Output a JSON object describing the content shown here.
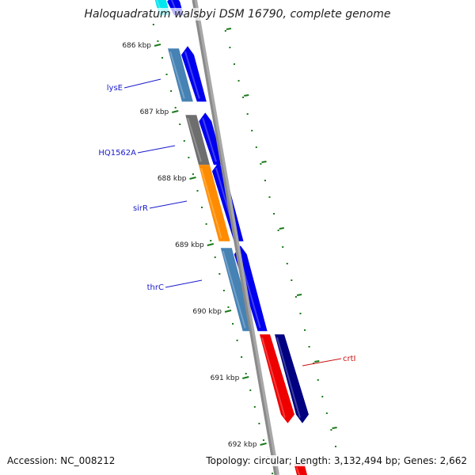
{
  "title": "Haloquadratum walsbyi DSM 16790, complete genome",
  "footer": {
    "accession": "Accession: NC_008212",
    "summary": "Topology: circular; Length: 3,132,494 bp; Genes: 2,662"
  },
  "colors": {
    "backbone": "#8a8a8a",
    "tick": "#1a7a1a",
    "forward_cds": "#0000ee",
    "reverse_cds": "#000080",
    "gene_label": "#1a1acc",
    "highlight_label": "#cc1111"
  },
  "ticks": [
    {
      "kbp": 686,
      "label": "686 kbp"
    },
    {
      "kbp": 687,
      "label": "687 kbp"
    },
    {
      "kbp": 688,
      "label": "688 kbp"
    },
    {
      "kbp": 689,
      "label": "689 kbp"
    },
    {
      "kbp": 690,
      "label": "690 kbp"
    },
    {
      "kbp": 691,
      "label": "691 kbp"
    },
    {
      "kbp": 692,
      "label": "692 kbp"
    }
  ],
  "features": [
    {
      "track": "outer",
      "start_kbp": 685.25,
      "end_kbp": 685.55,
      "color": "#00e5ee",
      "icon": "cyan-block"
    },
    {
      "track": "inner",
      "start_kbp": 685.25,
      "end_kbp": 685.55,
      "color": "#0000ee",
      "icon": "forward-arrow"
    },
    {
      "track": "outer",
      "start_kbp": 686.05,
      "end_kbp": 686.85,
      "color": "#4682b4",
      "icon": "block"
    },
    {
      "track": "inner",
      "start_kbp": 686.05,
      "end_kbp": 686.85,
      "color": "#0000ee",
      "icon": "forward-arrow"
    },
    {
      "track": "outer",
      "start_kbp": 687.05,
      "end_kbp": 687.8,
      "color": "#6e6e6e",
      "icon": "block"
    },
    {
      "track": "inner",
      "start_kbp": 687.05,
      "end_kbp": 687.8,
      "color": "#0000ee",
      "icon": "forward-arrow"
    },
    {
      "track": "outer",
      "start_kbp": 687.8,
      "end_kbp": 688.95,
      "color": "#ff8c00",
      "icon": "block"
    },
    {
      "track": "inner",
      "start_kbp": 687.8,
      "end_kbp": 688.95,
      "color": "#0000ee",
      "icon": "forward-arrow"
    },
    {
      "track": "outer",
      "start_kbp": 689.05,
      "end_kbp": 690.3,
      "color": "#4682b4",
      "icon": "block"
    },
    {
      "track": "inner",
      "start_kbp": 689.05,
      "end_kbp": 690.3,
      "color": "#0000ee",
      "icon": "forward-arrow"
    },
    {
      "track": "far-red",
      "start_kbp": 690.35,
      "end_kbp": 691.65,
      "color": "#ee0000",
      "icon": "reverse-arrow"
    },
    {
      "track": "far-navy",
      "start_kbp": 690.35,
      "end_kbp": 691.65,
      "color": "#000080",
      "icon": "reverse-arrow"
    },
    {
      "track": "far-red",
      "start_kbp": 692.3,
      "end_kbp": 692.6,
      "color": "#ee0000",
      "icon": "block"
    }
  ],
  "gene_labels": [
    {
      "text": "lysE",
      "color": "#1a1acc",
      "at_kbp": 686.4
    },
    {
      "text": "HQ1562A",
      "color": "#1a1acc",
      "at_kbp": 687.4
    },
    {
      "text": "sirR",
      "color": "#1a1acc",
      "at_kbp": 688.35
    },
    {
      "text": "thrC",
      "color": "#1a1acc",
      "at_kbp": 689.65
    },
    {
      "text": "crtI",
      "color": "#cc1111",
      "at_kbp": 691.0
    }
  ]
}
